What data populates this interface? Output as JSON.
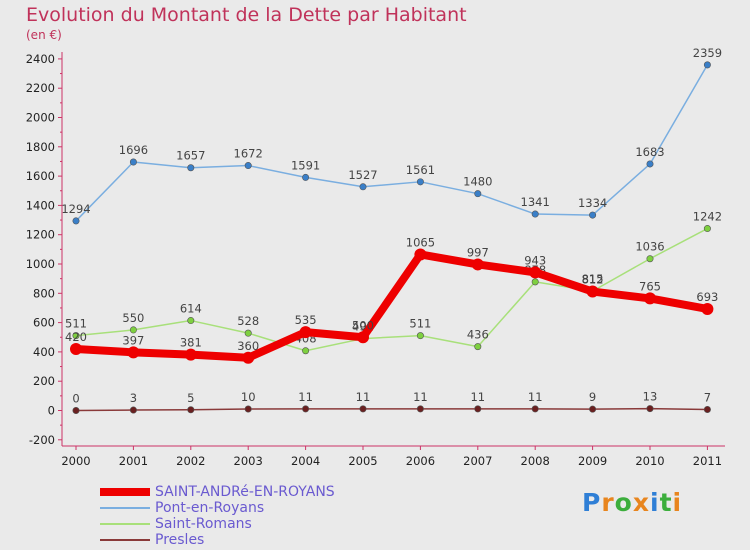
{
  "title": "Evolution du Montant de la Dette par Habitant",
  "unit": "(en €)",
  "logo": {
    "text": "Proxiti",
    "letters": [
      "P",
      "r",
      "o",
      "x",
      "i",
      "t",
      "i"
    ],
    "colors": [
      "#2f7fd6",
      "#e8851e",
      "#3cae3c",
      "#e8851e",
      "#2f7fd6",
      "#3cae3c",
      "#e8851e"
    ]
  },
  "chart_data": {
    "type": "line",
    "title": "Evolution du Montant de la Dette par Habitant",
    "ylabel": "(en €)",
    "categories": [
      "2000",
      "2001",
      "2002",
      "2003",
      "2004",
      "2005",
      "2006",
      "2007",
      "2008",
      "2009",
      "2010",
      "2011"
    ],
    "ylim": [
      -200,
      2500
    ],
    "yticks": [
      -200,
      0,
      200,
      400,
      600,
      800,
      1000,
      1200,
      1400,
      1600,
      1800,
      2000,
      2200,
      2400
    ],
    "grid": false,
    "legend": "bottom-left",
    "series": [
      {
        "name": "SAINT-ANDRé-EN-ROYANS",
        "color": "#ee0000",
        "marker": "#ee0000",
        "width": 8,
        "values": [
          420,
          397,
          381,
          360,
          535,
          500,
          1065,
          997,
          943,
          812,
          765,
          693
        ]
      },
      {
        "name": "Pont-en-Royans",
        "color": "#7aaee0",
        "marker": "#3a7fc8",
        "width": 1.5,
        "values": [
          1294,
          1696,
          1657,
          1672,
          1591,
          1527,
          1561,
          1480,
          1341,
          1334,
          1683,
          2359
        ]
      },
      {
        "name": "Saint-Romans",
        "color": "#a8e07a",
        "marker": "#7ed040",
        "width": 1.5,
        "values": [
          511,
          550,
          614,
          528,
          408,
          491,
          511,
          436,
          878,
          815,
          1036,
          1242
        ]
      },
      {
        "name": "Presles",
        "color": "#8a3a3a",
        "marker": "#6a2020",
        "width": 1.5,
        "values": [
          0,
          3,
          5,
          10,
          11,
          11,
          11,
          11,
          11,
          9,
          13,
          7
        ]
      }
    ]
  }
}
